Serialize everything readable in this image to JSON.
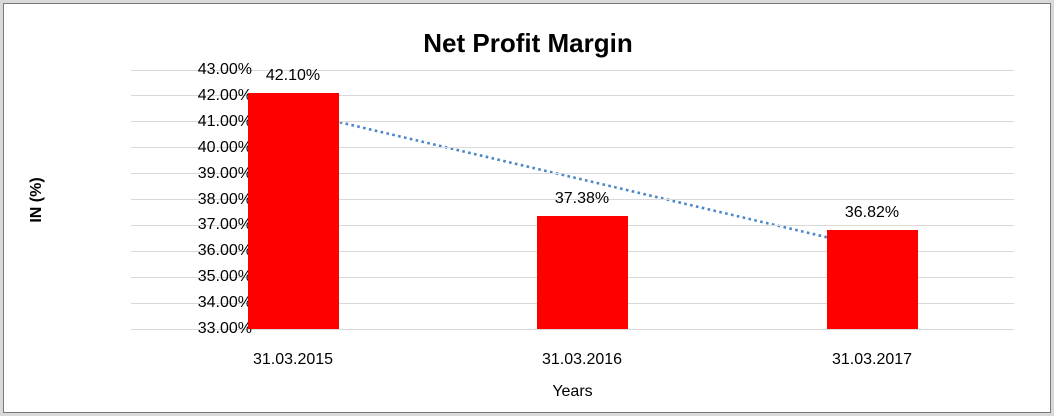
{
  "frame": {
    "outer_background": "#d9d9d9",
    "chart_background": "#ffffff",
    "border_color": "#7a7a7a"
  },
  "chart_data": {
    "type": "bar",
    "title": "Net Profit Margin",
    "xlabel": "Years",
    "ylabel": "IN (%)",
    "categories": [
      "31.03.2015",
      "31.03.2016",
      "31.03.2017"
    ],
    "values": [
      42.1,
      37.38,
      36.82
    ],
    "data_labels": [
      "42.10%",
      "37.38%",
      "36.82%"
    ],
    "ylim": [
      33,
      43
    ],
    "ytick_step": 1,
    "ytick_labels": [
      "43.00%",
      "42.00%",
      "41.00%",
      "40.00%",
      "39.00%",
      "38.00%",
      "37.00%",
      "36.00%",
      "35.00%",
      "34.00%",
      "33.00%"
    ],
    "grid": true,
    "legend": "none",
    "bar_color": "#ff0000",
    "gridline_color": "#d9d9d9",
    "text_color": "#000000",
    "trendline": {
      "type": "linear",
      "style": "dotted",
      "color": "#4a86c8",
      "values_at_ends": [
        41.41,
        36.13
      ]
    }
  }
}
